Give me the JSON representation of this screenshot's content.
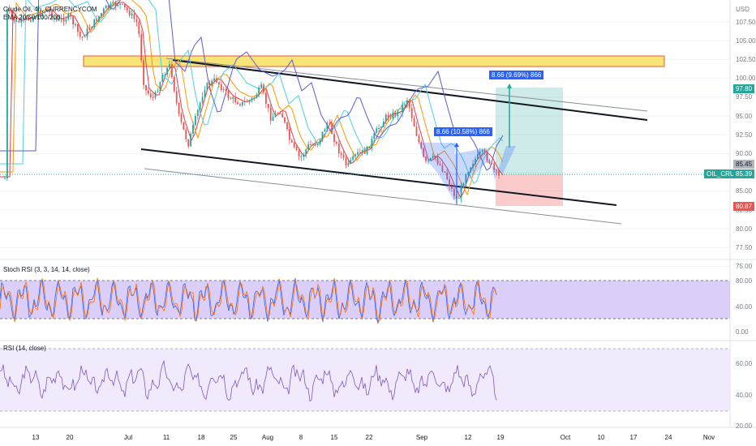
{
  "header": {
    "title": "Crude Oil, 4h, CURRENCYCOM",
    "indicator": "EMA 20/50/100/200"
  },
  "currency": "USD",
  "price_axis": [
    "107.50",
    "105.00",
    "102.50",
    "100.00",
    "97.50",
    "95.00",
    "92.50",
    "90.00",
    "87.50",
    "85.00",
    "82.50",
    "80.00",
    "77.50",
    "75.00"
  ],
  "stoch_axis": [
    "80.00",
    "40.00",
    "0.00"
  ],
  "rsi_axis": [
    "60.00",
    "40.00",
    "20.00"
  ],
  "time_axis": [
    "13",
    "20",
    "Jul",
    "11",
    "18",
    "25",
    "Aug",
    "8",
    "15",
    "22",
    "Sep",
    "12",
    "19",
    "Oct",
    "10",
    "17",
    "24",
    "Nov"
  ],
  "stoch_label": "Stoch RSI (3, 3, 14, 14, close)",
  "rsi_label": "RSI (14, close)",
  "tags": {
    "target": "97.80",
    "prev_close": "85.45",
    "current": "85.39",
    "symbol": "OIL_CRUDE",
    "stop": "80.87"
  },
  "measure_left": "8.66 (10.58%) 866",
  "measure_right": "8.66 (9.69%) 866",
  "colors": {
    "up": "#26a69a",
    "down": "#ef5350",
    "ema20": "#f23645",
    "ema50": "#ff9800",
    "ema100": "#4dd0e1",
    "ema200": "#5b5bd6",
    "zone": "#f7dc4a",
    "measure": "#2962ff",
    "stoch_bg": "#c7b3f5",
    "rsi_bg": "#ede4fb"
  },
  "icons": {
    "target_arrow": "arrow-up-icon"
  }
}
